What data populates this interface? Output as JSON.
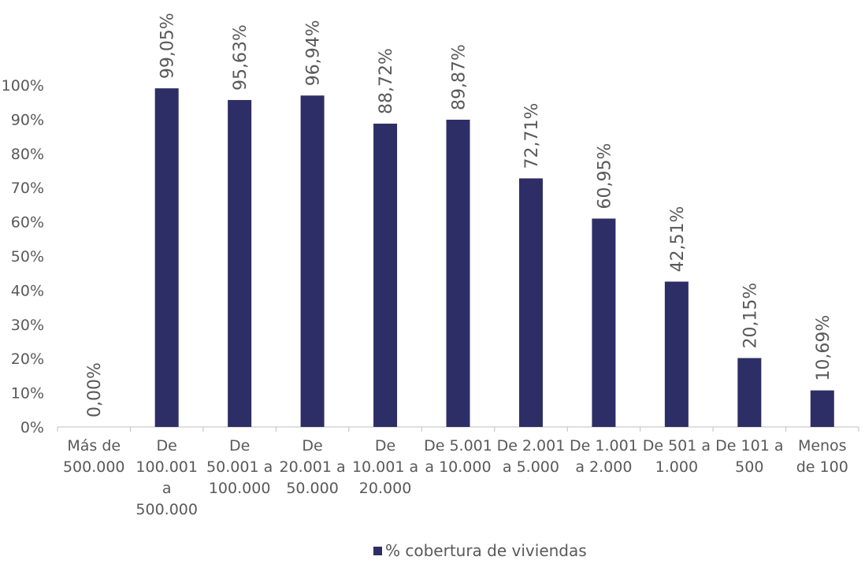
{
  "chart_data": {
    "type": "bar",
    "title": "",
    "xlabel": "",
    "ylabel": "",
    "categories": [
      [
        "Más de",
        "500.000"
      ],
      [
        "De",
        "100.001",
        "a",
        "500.000"
      ],
      [
        "De",
        "50.001 a",
        "100.000"
      ],
      [
        "De",
        "20.001 a",
        "50.000"
      ],
      [
        "De",
        "10.001 a",
        "20.000"
      ],
      [
        "De 5.001",
        "a 10.000"
      ],
      [
        "De 2.001",
        "a 5.000"
      ],
      [
        "De 1.001",
        "a 2.000"
      ],
      [
        "De 501 a",
        "1.000"
      ],
      [
        "De 101 a",
        "500"
      ],
      [
        "Menos",
        "de 100"
      ]
    ],
    "series": [
      {
        "name": "% cobertura de viviendas",
        "color": "#2e2e66",
        "values": [
          0.0,
          99.05,
          95.63,
          96.94,
          88.72,
          89.87,
          72.71,
          60.95,
          42.51,
          20.15,
          10.69
        ],
        "labels": [
          "0,00%",
          "99,05%",
          "95,63%",
          "96,94%",
          "88,72%",
          "89,87%",
          "72,71%",
          "60,95%",
          "42,51%",
          "20,15%",
          "10,69%"
        ]
      }
    ],
    "ylim": [
      0,
      100
    ],
    "yticks": [
      0,
      10,
      20,
      30,
      40,
      50,
      60,
      70,
      80,
      90,
      100
    ],
    "ytick_labels": [
      "0%",
      "10%",
      "20%",
      "30%",
      "40%",
      "50%",
      "60%",
      "70%",
      "80%",
      "90%",
      "100%"
    ],
    "grid": false,
    "legend_position": "bottom"
  }
}
